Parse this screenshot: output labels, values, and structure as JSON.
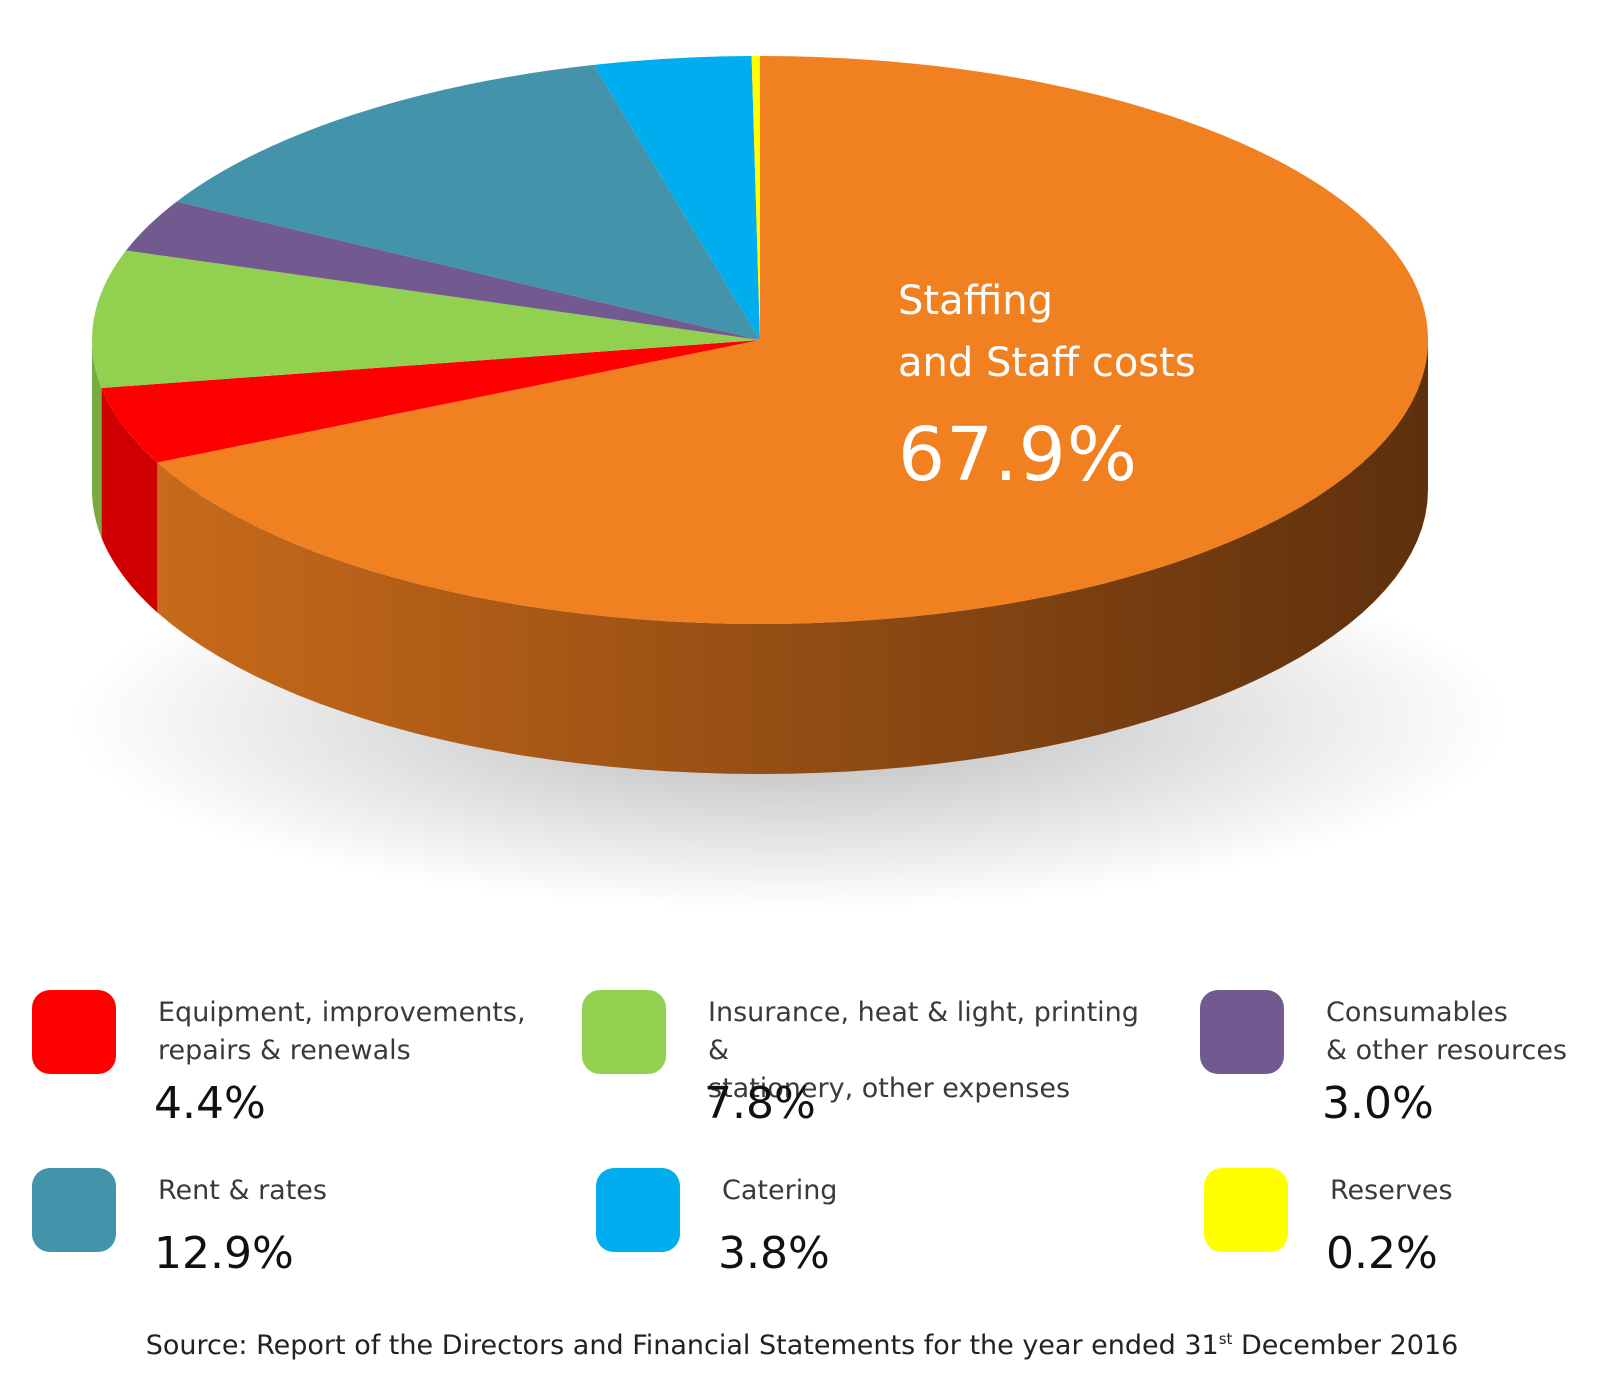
{
  "chart_data": {
    "type": "pie",
    "slices": [
      {
        "name": "Staffing and Staff costs",
        "value": 67.9,
        "display": "67.9%",
        "color": "#F08020"
      },
      {
        "name": "Equipment, improvements, repairs & renewals",
        "value": 4.4,
        "display": "4.4%",
        "color": "#FF0000"
      },
      {
        "name": "Insurance, heat & light, printing & stationery, other expenses",
        "value": 7.8,
        "display": "7.8%",
        "color": "#92D050"
      },
      {
        "name": "Consumables & other resources",
        "value": 3.0,
        "display": "3.0%",
        "color": "#725A90"
      },
      {
        "name": "Rent & rates",
        "value": 12.9,
        "display": "12.9%",
        "color": "#4393AA"
      },
      {
        "name": "Catering",
        "value": 3.8,
        "display": "3.8%",
        "color": "#00AEEF"
      },
      {
        "name": "Reserves",
        "value": 0.2,
        "display": "0.2%",
        "color": "#FFFF00"
      }
    ]
  },
  "main_label": {
    "line1": "Staffing",
    "line2": "and Staff costs",
    "value": "67.9%"
  },
  "legend": [
    {
      "label": "Equipment, improvements,\nrepairs & renewals",
      "value": "4.4%",
      "color": "#FF0000"
    },
    {
      "label": "Insurance, heat & light, printing &\nstationery, other expenses",
      "value": "7.8%",
      "color": "#92D050"
    },
    {
      "label": "Consumables\n& other resources",
      "value": "3.0%",
      "color": "#725A90"
    },
    {
      "label": "Rent & rates",
      "value": "12.9%",
      "color": "#4393AA"
    },
    {
      "label": "Catering",
      "value": "3.8%",
      "color": "#00AEEF"
    },
    {
      "label": "Reserves",
      "value": "0.2%",
      "color": "#FFFF00"
    }
  ],
  "source": {
    "prefix": "Source: Report of the Directors and Financial Statements for the year ended 31",
    "sup": "st",
    "suffix": " December 2016"
  }
}
